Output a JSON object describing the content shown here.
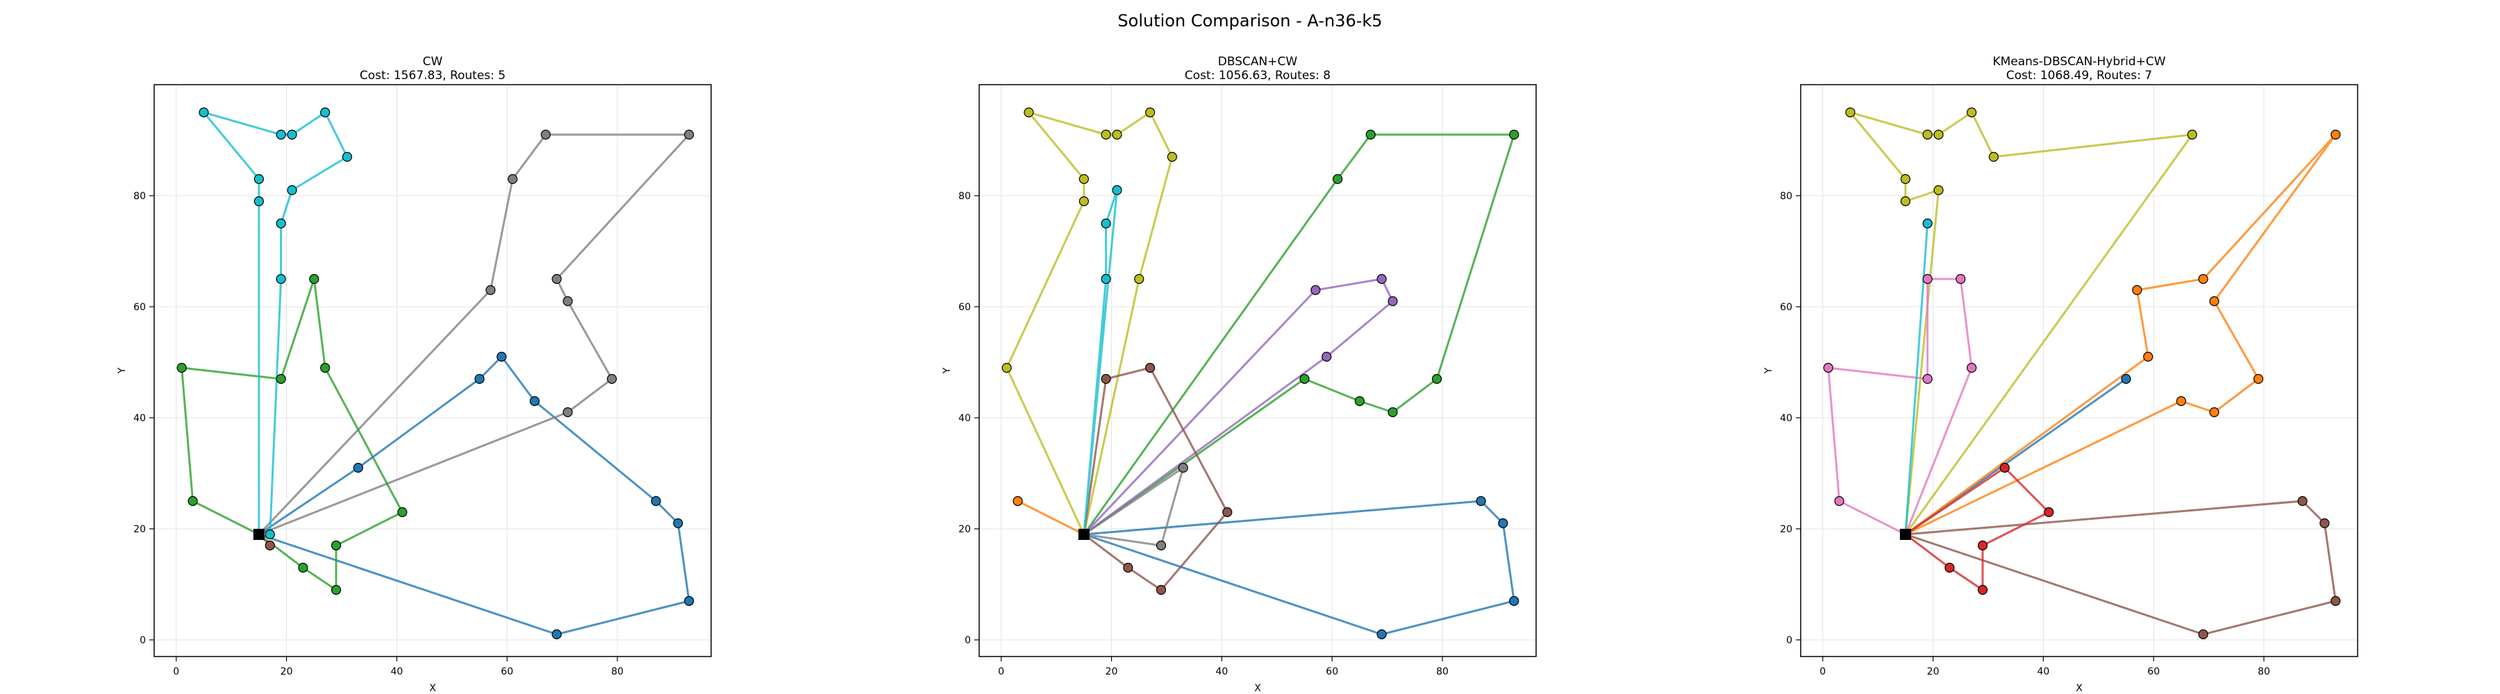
{
  "figure": {
    "suptitle": "Solution Comparison - A-n36-k5"
  },
  "chart_data": [
    {
      "type": "scatter",
      "title": "CW",
      "subtitle": "Cost: 1567.83, Routes: 5",
      "xlabel": "X",
      "ylabel": "Y",
      "xlim": [
        -4,
        97
      ],
      "ylim": [
        -3,
        100
      ],
      "xticks": [
        0,
        20,
        40,
        60,
        80
      ],
      "yticks": [
        0,
        20,
        40,
        60,
        80
      ],
      "grid": true,
      "depot": [
        15,
        19
      ],
      "routes": [
        {
          "color": "#1f77b4",
          "points": [
            [
              15,
              19
            ],
            [
              33,
              31
            ],
            [
              55,
              47
            ],
            [
              59,
              51
            ],
            [
              65,
              43
            ],
            [
              87,
              25
            ],
            [
              91,
              21
            ],
            [
              93,
              7
            ],
            [
              69,
              1
            ],
            [
              15,
              19
            ]
          ]
        },
        {
          "color": "#7f7f7f",
          "points": [
            [
              15,
              19
            ],
            [
              57,
              63
            ],
            [
              61,
              83
            ],
            [
              67,
              91
            ],
            [
              93,
              91
            ],
            [
              69,
              65
            ],
            [
              71,
              61
            ],
            [
              79,
              47
            ],
            [
              71,
              41
            ],
            [
              15,
              19
            ]
          ]
        },
        {
          "color": "#2ca02c",
          "points": [
            [
              15,
              19
            ],
            [
              3,
              25
            ],
            [
              1,
              49
            ],
            [
              19,
              47
            ],
            [
              25,
              65
            ],
            [
              27,
              49
            ],
            [
              41,
              23
            ],
            [
              29,
              17
            ],
            [
              29,
              9
            ],
            [
              23,
              13
            ],
            [
              15,
              19
            ]
          ]
        },
        {
          "color": "#8c564b",
          "points": [
            [
              15,
              19
            ],
            [
              17,
              17
            ]
          ]
        },
        {
          "color": "#17becf",
          "points": [
            [
              15,
              19
            ],
            [
              15,
              79
            ],
            [
              15,
              83
            ],
            [
              5,
              95
            ],
            [
              19,
              91
            ],
            [
              21,
              91
            ],
            [
              27,
              95
            ],
            [
              31,
              87
            ],
            [
              21,
              81
            ],
            [
              19,
              75
            ],
            [
              19,
              65
            ],
            [
              17,
              19
            ]
          ]
        }
      ]
    },
    {
      "type": "scatter",
      "title": "DBSCAN+CW",
      "subtitle": "Cost: 1056.63, Routes: 8",
      "xlabel": "X",
      "ylabel": "Y",
      "xlim": [
        -4,
        97
      ],
      "ylim": [
        -3,
        100
      ],
      "xticks": [
        0,
        20,
        40,
        60,
        80
      ],
      "yticks": [
        0,
        20,
        40,
        60,
        80
      ],
      "grid": true,
      "depot": [
        15,
        19
      ],
      "routes": [
        {
          "color": "#1f77b4",
          "points": [
            [
              15,
              19
            ],
            [
              87,
              25
            ],
            [
              91,
              21
            ],
            [
              93,
              7
            ],
            [
              69,
              1
            ],
            [
              15,
              19
            ]
          ]
        },
        {
          "color": "#2ca02c",
          "points": [
            [
              15,
              19
            ],
            [
              61,
              83
            ],
            [
              67,
              91
            ],
            [
              93,
              91
            ],
            [
              79,
              47
            ],
            [
              71,
              41
            ],
            [
              65,
              43
            ],
            [
              55,
              47
            ],
            [
              15,
              19
            ]
          ]
        },
        {
          "color": "#9467bd",
          "points": [
            [
              15,
              19
            ],
            [
              57,
              63
            ],
            [
              69,
              65
            ],
            [
              71,
              61
            ],
            [
              59,
              51
            ],
            [
              15,
              19
            ]
          ]
        },
        {
          "color": "#bcbd22",
          "points": [
            [
              15,
              19
            ],
            [
              1,
              49
            ],
            [
              15,
              79
            ],
            [
              15,
              83
            ],
            [
              5,
              95
            ],
            [
              19,
              91
            ],
            [
              21,
              91
            ],
            [
              27,
              95
            ],
            [
              31,
              87
            ],
            [
              25,
              65
            ],
            [
              15,
              19
            ]
          ]
        },
        {
          "color": "#8c564b",
          "points": [
            [
              15,
              19
            ],
            [
              19,
              47
            ],
            [
              27,
              49
            ],
            [
              41,
              23
            ],
            [
              29,
              9
            ],
            [
              23,
              13
            ],
            [
              15,
              19
            ]
          ]
        },
        {
          "color": "#7f7f7f",
          "points": [
            [
              15,
              19
            ],
            [
              33,
              31
            ],
            [
              29,
              17
            ],
            [
              15,
              19
            ]
          ]
        },
        {
          "color": "#ff7f0e",
          "points": [
            [
              15,
              19
            ],
            [
              3,
              25
            ],
            [
              15,
              19
            ]
          ]
        },
        {
          "color": "#17becf",
          "points": [
            [
              15,
              19
            ],
            [
              21,
              81
            ],
            [
              19,
              75
            ],
            [
              19,
              65
            ],
            [
              15,
              19
            ]
          ]
        }
      ]
    },
    {
      "type": "scatter",
      "title": "KMeans-DBSCAN-Hybrid+CW",
      "subtitle": "Cost: 1068.49, Routes: 7",
      "xlabel": "X",
      "ylabel": "Y",
      "xlim": [
        -4,
        97
      ],
      "ylim": [
        -3,
        100
      ],
      "xticks": [
        0,
        20,
        40,
        60,
        80
      ],
      "yticks": [
        0,
        20,
        40,
        60,
        80
      ],
      "grid": true,
      "depot": [
        15,
        19
      ],
      "routes": [
        {
          "color": "#1f77b4",
          "points": [
            [
              15,
              19
            ],
            [
              55,
              47
            ],
            [
              15,
              19
            ]
          ]
        },
        {
          "color": "#ff7f0e",
          "points": [
            [
              15,
              19
            ],
            [
              59,
              51
            ],
            [
              57,
              63
            ],
            [
              69,
              65
            ],
            [
              93,
              91
            ],
            [
              71,
              61
            ],
            [
              79,
              47
            ],
            [
              71,
              41
            ],
            [
              65,
              43
            ],
            [
              15,
              19
            ]
          ]
        },
        {
          "color": "#8c564b",
          "points": [
            [
              15,
              19
            ],
            [
              87,
              25
            ],
            [
              91,
              21
            ],
            [
              93,
              7
            ],
            [
              69,
              1
            ],
            [
              15,
              19
            ]
          ]
        },
        {
          "color": "#d62728",
          "points": [
            [
              15,
              19
            ],
            [
              33,
              31
            ],
            [
              41,
              23
            ],
            [
              29,
              17
            ],
            [
              29,
              9
            ],
            [
              23,
              13
            ],
            [
              15,
              19
            ]
          ]
        },
        {
          "color": "#bcbd22",
          "points": [
            [
              15,
              19
            ],
            [
              67,
              91
            ],
            [
              31,
              87
            ],
            [
              27,
              95
            ],
            [
              21,
              91
            ],
            [
              19,
              91
            ],
            [
              5,
              95
            ],
            [
              15,
              83
            ],
            [
              15,
              79
            ],
            [
              21,
              81
            ],
            [
              15,
              19
            ]
          ]
        },
        {
          "color": "#e377c2",
          "points": [
            [
              15,
              19
            ],
            [
              3,
              25
            ],
            [
              1,
              49
            ],
            [
              19,
              47
            ],
            [
              19,
              65
            ],
            [
              25,
              65
            ],
            [
              27,
              49
            ],
            [
              15,
              19
            ]
          ]
        },
        {
          "color": "#17becf",
          "points": [
            [
              15,
              19
            ],
            [
              19,
              75
            ],
            [
              15,
              19
            ]
          ]
        }
      ]
    }
  ]
}
